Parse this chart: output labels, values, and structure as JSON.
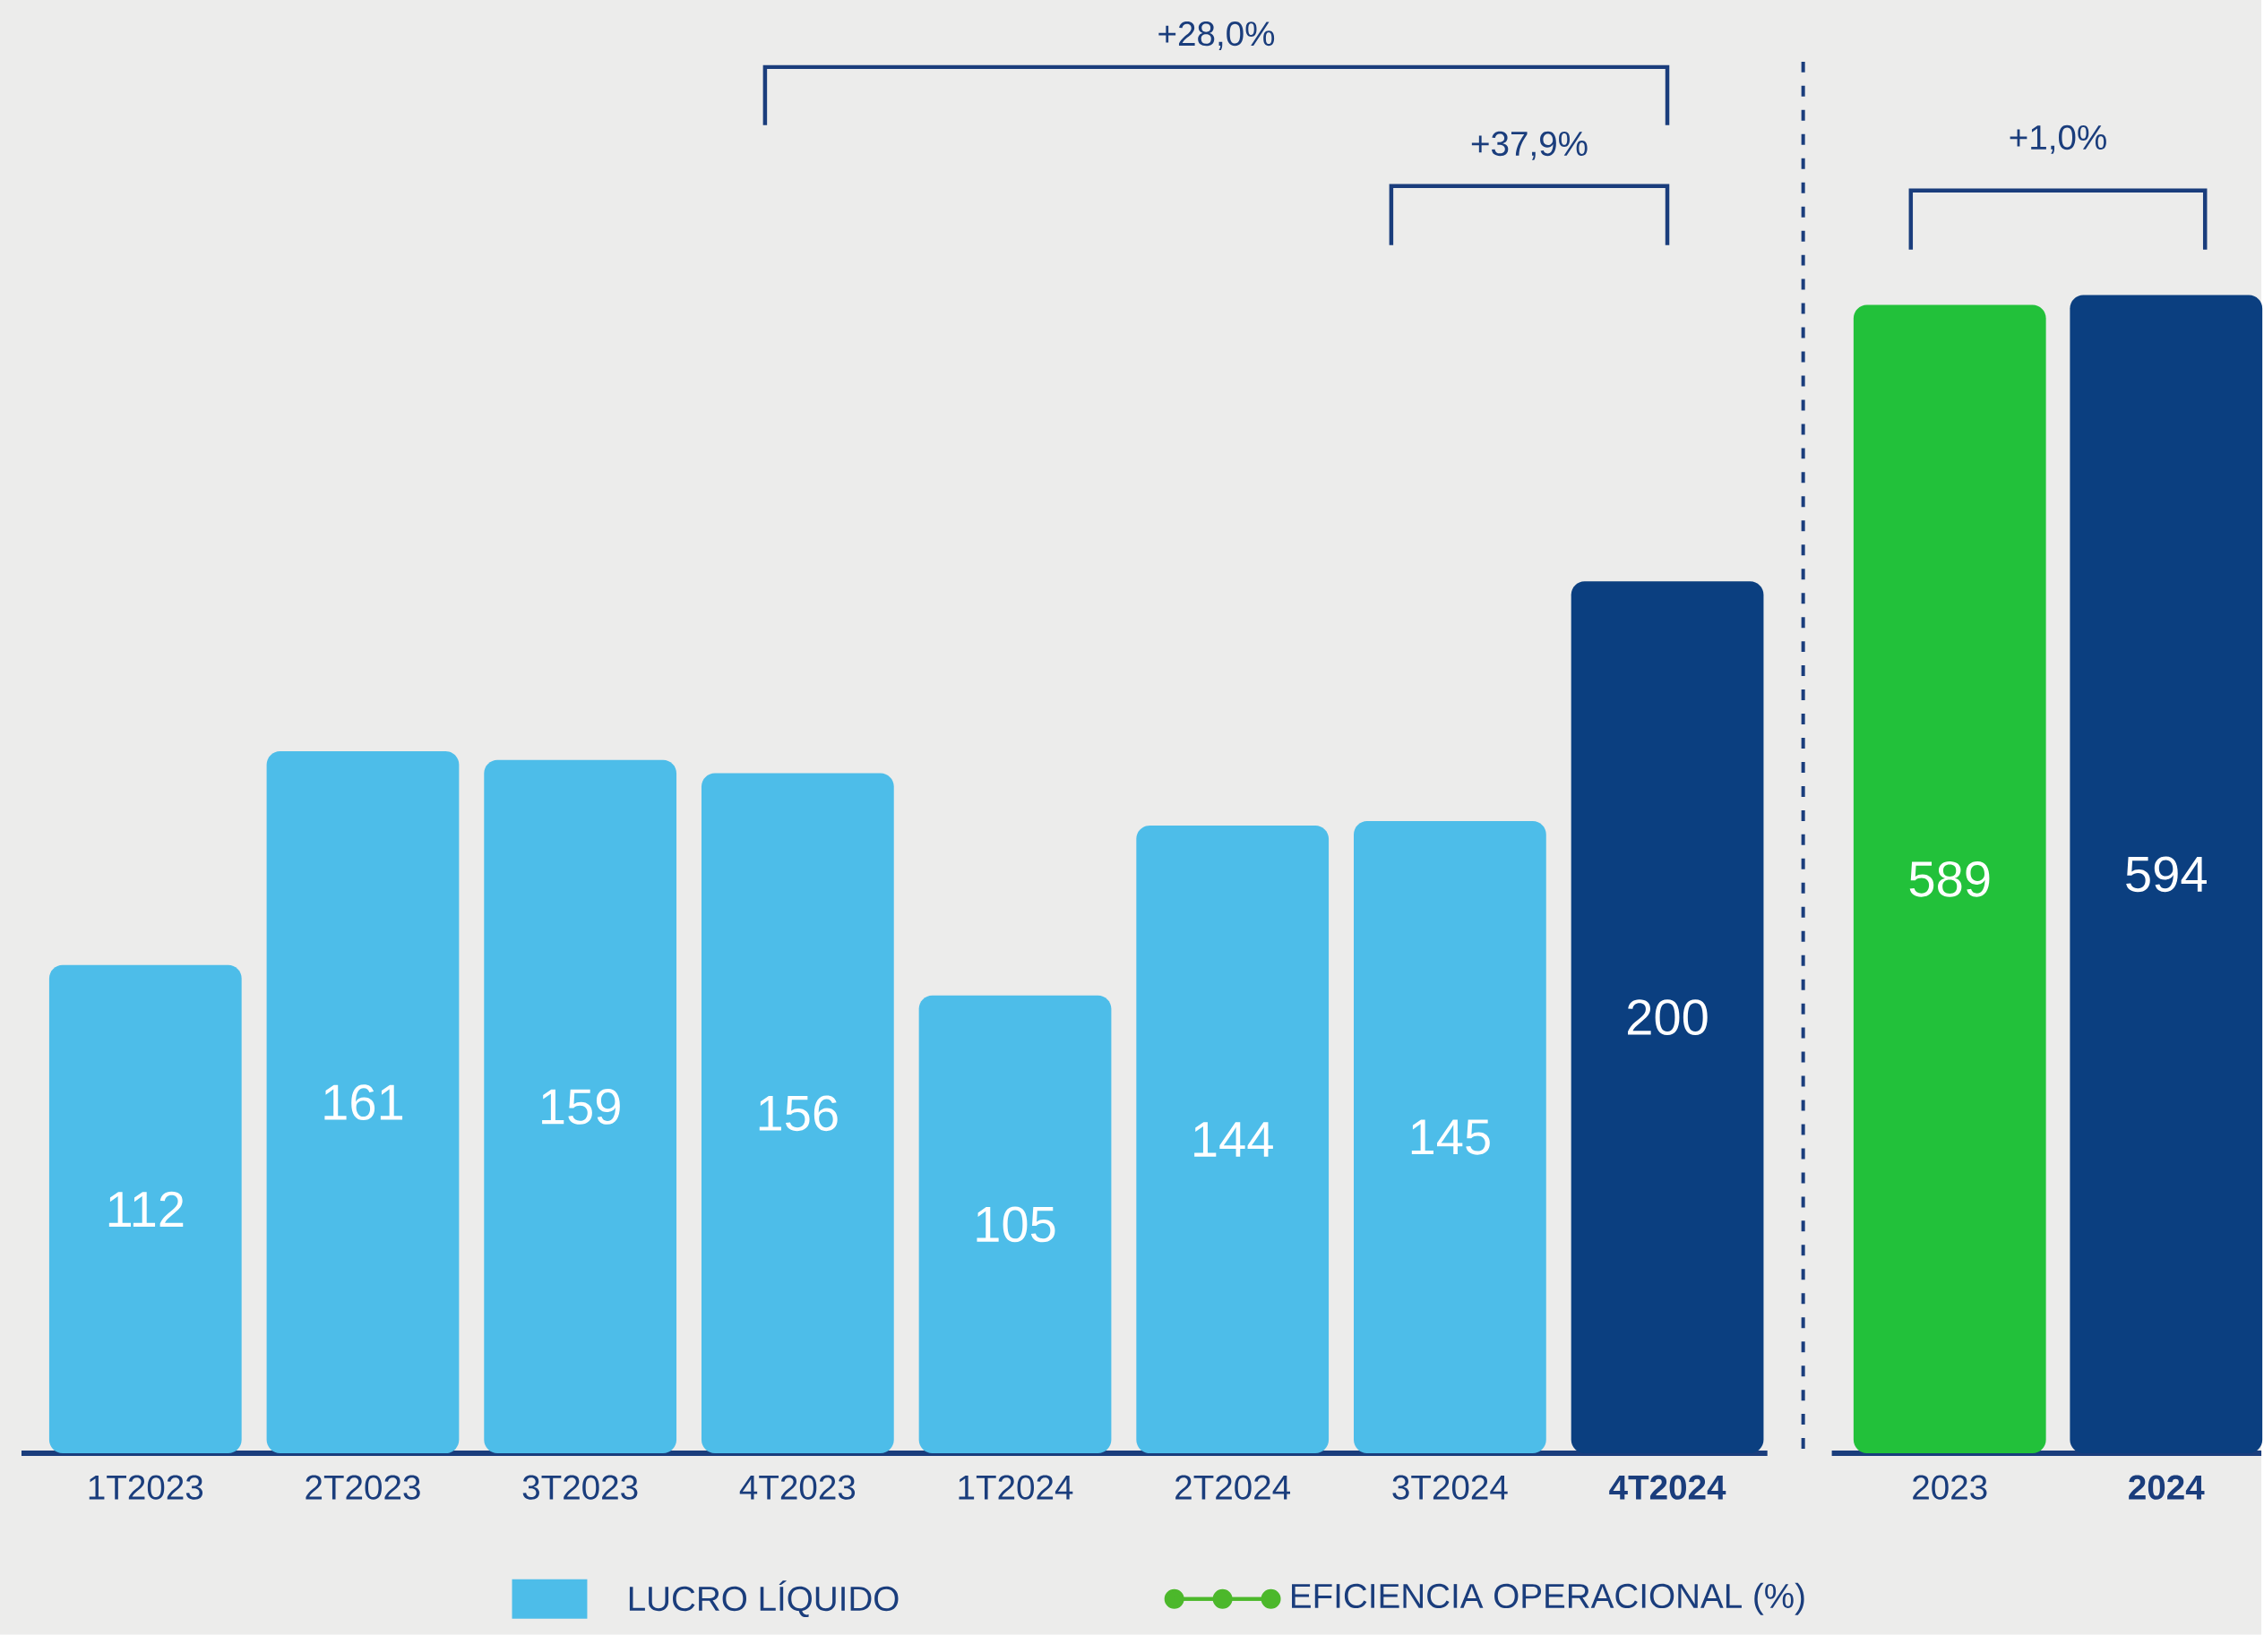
{
  "chart_data": [
    {
      "type": "bar",
      "categories": [
        "1T2023",
        "2T2023",
        "3T2023",
        "4T2023",
        "1T2024",
        "2T2024",
        "3T2024",
        "4T2024"
      ],
      "series": [
        {
          "name": "LUCRO LÍQUIDO",
          "color": "#4dbde9",
          "colors": [
            "#4dbde9",
            "#4dbde9",
            "#4dbde9",
            "#4dbde9",
            "#4dbde9",
            "#4dbde9",
            "#4dbde9",
            "#0b3f80"
          ],
          "values": [
            112,
            161,
            159,
            156,
            105,
            144,
            145,
            200
          ]
        },
        {
          "name": "EFICIENCIA OPERACIONAL (%)",
          "type": "line",
          "color": "#4cb82b",
          "marker": "circle",
          "values": [
            null,
            null,
            null,
            null,
            null,
            null,
            null,
            null
          ]
        }
      ],
      "data_labels": true,
      "legend": "bottom",
      "annotations": [
        "+28,0%",
        "+37,9%"
      ]
    },
    {
      "type": "bar",
      "categories": [
        "2023",
        "2024"
      ],
      "values": [
        589,
        594
      ],
      "colors": [
        "#22c13a",
        "#0b3f80"
      ],
      "data_labels": true,
      "annotations": [
        "+1,0%"
      ]
    }
  ]
}
